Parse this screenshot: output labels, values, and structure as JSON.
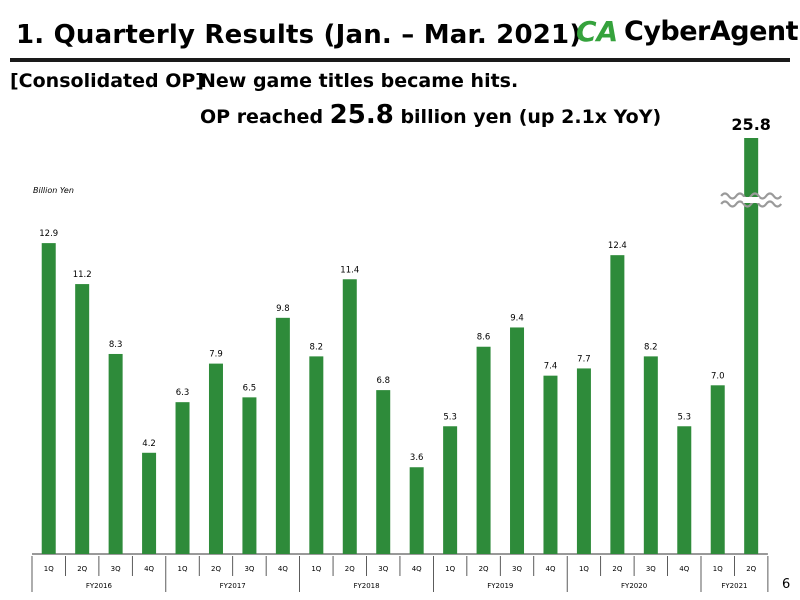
{
  "header": {
    "title": "1.  Quarterly Results (Jan. – Mar. 2021)",
    "logo_mark": "CA",
    "logo_text": "CyberAgent."
  },
  "subtitle": {
    "label": "[Consolidated OP]",
    "line1": "New game titles became hits.",
    "line2_prefix": "OP reached ",
    "line2_value": "25.8",
    "line2_suffix": " billion yen (up 2.1x YoY)"
  },
  "page_number": "6",
  "colors": {
    "bar": "#2e8b3a",
    "rule": "#1a1a1a"
  },
  "chart_data": {
    "type": "bar",
    "unit_label": "Billion Yen",
    "categories": [
      "1Q",
      "2Q",
      "3Q",
      "4Q",
      "1Q",
      "2Q",
      "3Q",
      "4Q",
      "1Q",
      "2Q",
      "3Q",
      "4Q",
      "1Q",
      "2Q",
      "3Q",
      "4Q",
      "1Q",
      "2Q",
      "3Q",
      "4Q",
      "1Q",
      "2Q"
    ],
    "values": [
      12.9,
      11.2,
      8.3,
      4.2,
      6.3,
      7.9,
      6.5,
      9.8,
      8.2,
      11.4,
      6.8,
      3.6,
      5.3,
      8.6,
      9.4,
      7.4,
      7.7,
      12.4,
      8.2,
      5.3,
      7.0,
      25.8
    ],
    "value_labels": [
      "12.9",
      "11.2",
      "8.3",
      "4.2",
      "6.3",
      "7.9",
      "6.5",
      "9.8",
      "8.2",
      "11.4",
      "6.8",
      "3.6",
      "5.3",
      "8.6",
      "9.4",
      "7.4",
      "7.7",
      "12.4",
      "8.2",
      "5.3",
      "7.0",
      "25.8"
    ],
    "groups": [
      {
        "label": "FY2016",
        "count": 4
      },
      {
        "label": "FY2017",
        "count": 4
      },
      {
        "label": "FY2018",
        "count": 4
      },
      {
        "label": "FY2019",
        "count": 4
      },
      {
        "label": "FY2020",
        "count": 4
      },
      {
        "label": "FY2021",
        "count": 2
      }
    ],
    "axis_break": true,
    "ylim": [
      0,
      15
    ]
  }
}
